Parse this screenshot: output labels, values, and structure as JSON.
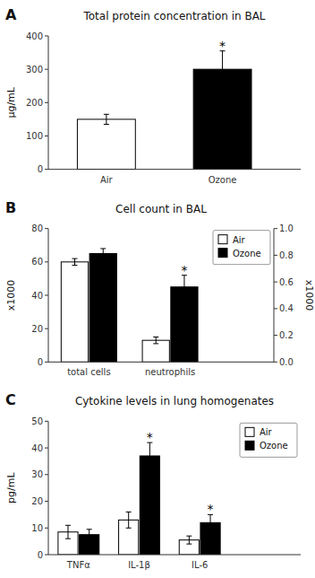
{
  "chart_data": [
    {
      "type": "bar",
      "panel_label": "A",
      "title": "Total protein concentration in BAL",
      "y_label": "µg/mL",
      "categories": [
        "Air",
        "Ozone"
      ],
      "values": [
        150,
        300
      ],
      "errors": [
        15,
        55
      ],
      "colors": [
        "white",
        "black"
      ],
      "ylim": [
        0,
        400
      ],
      "yticks": [
        0,
        100,
        200,
        300,
        400
      ],
      "annotations": [
        {
          "text": "*",
          "category": "Ozone"
        }
      ]
    },
    {
      "type": "bar",
      "panel_label": "B",
      "title": "Cell count in BAL",
      "y_label": "x1000",
      "y2_label": "x1000",
      "categories": [
        "total cells",
        "neutrophils"
      ],
      "series": [
        {
          "name": "Air",
          "color": "white",
          "values": [
            60,
            13
          ],
          "errors": [
            2,
            2
          ]
        },
        {
          "name": "Ozone",
          "color": "black",
          "values": [
            65,
            45
          ],
          "errors": [
            3,
            7
          ]
        }
      ],
      "ylim": [
        0,
        80
      ],
      "yticks": [
        0,
        20,
        40,
        60,
        80
      ],
      "y2lim": [
        0,
        1.0
      ],
      "y2ticks": [
        {
          "value": 0,
          "label": "0.0"
        },
        0.2,
        0.4,
        0.6,
        0.8,
        {
          "value": 1,
          "label": "1.0"
        }
      ],
      "legend": "upper right",
      "annotations": [
        {
          "text": "*",
          "series": "Ozone",
          "category": "neutrophils"
        }
      ]
    },
    {
      "type": "bar",
      "panel_label": "C",
      "title": "Cytokine levels in lung homogenates",
      "y_label": "pg/mL",
      "categories": [
        "TNFα",
        "IL-1β",
        "IL-6"
      ],
      "series": [
        {
          "name": "Air",
          "color": "white",
          "values": [
            8.5,
            13,
            5.5
          ],
          "errors": [
            2.5,
            3,
            1.5
          ]
        },
        {
          "name": "Ozone",
          "color": "black",
          "values": [
            7.5,
            37,
            12
          ],
          "errors": [
            2,
            5,
            3
          ]
        }
      ],
      "ylim": [
        0,
        50
      ],
      "yticks": [
        0,
        10,
        20,
        30,
        40,
        50
      ],
      "legend": "upper right",
      "annotations": [
        {
          "text": "*",
          "series": "Ozone",
          "category": "IL-1β"
        },
        {
          "text": "*",
          "series": "Ozone",
          "category": "IL-6"
        }
      ]
    }
  ]
}
